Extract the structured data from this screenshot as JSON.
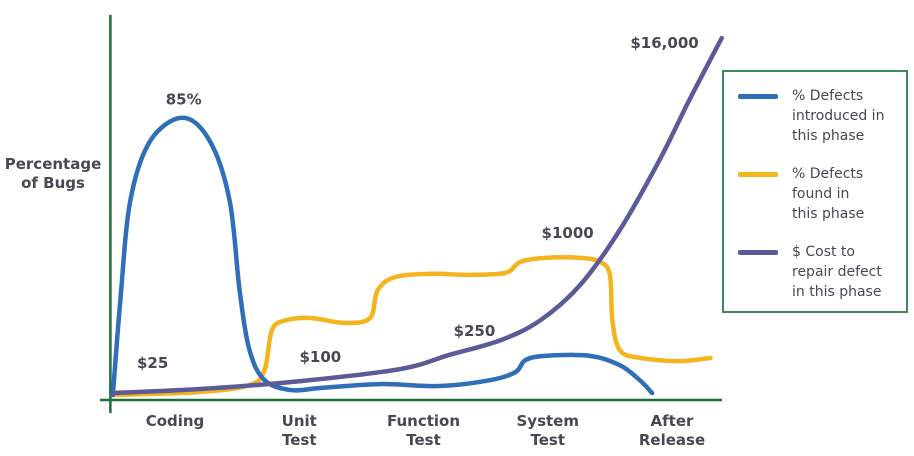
{
  "chart_data": {
    "type": "line",
    "title": "",
    "ylabel": [
      "Percentage",
      "of Bugs"
    ],
    "xlabel": "",
    "categories": [
      [
        "Coding"
      ],
      [
        "Unit",
        "Test"
      ],
      [
        "Function",
        "Test"
      ],
      [
        "System",
        "Test"
      ],
      [
        "After",
        "Release"
      ]
    ],
    "xlim": [
      -0.52,
      4.4
    ],
    "ylim": [
      0,
      116
    ],
    "grid": false,
    "legend_position": "right",
    "series": [
      {
        "name": "% Defects introduced in this phase",
        "color": "#2f6fba",
        "points": [
          [
            -0.5,
            1.5
          ],
          [
            -0.44,
            30
          ],
          [
            -0.36,
            60
          ],
          [
            -0.2,
            78
          ],
          [
            0.06,
            85
          ],
          [
            0.28,
            78
          ],
          [
            0.44,
            60
          ],
          [
            0.52,
            33
          ],
          [
            0.6,
            15
          ],
          [
            0.72,
            6
          ],
          [
            0.93,
            3
          ],
          [
            1.17,
            3.6
          ],
          [
            1.65,
            4.8
          ],
          [
            2.13,
            4.2
          ],
          [
            2.54,
            6
          ],
          [
            2.74,
            8.4
          ],
          [
            2.82,
            12
          ],
          [
            2.98,
            13.3
          ],
          [
            3.34,
            13.3
          ],
          [
            3.58,
            10.5
          ],
          [
            3.74,
            6
          ],
          [
            3.84,
            2.1
          ]
        ]
      },
      {
        "name": "% Defects found in this phase",
        "color": "#f4b41e",
        "points": [
          [
            -0.5,
            1.5
          ],
          [
            0.2,
            2.4
          ],
          [
            0.6,
            4.5
          ],
          [
            0.72,
            9
          ],
          [
            0.78,
            21
          ],
          [
            0.89,
            24
          ],
          [
            1.09,
            24.7
          ],
          [
            1.37,
            23.2
          ],
          [
            1.57,
            24.7
          ],
          [
            1.63,
            33
          ],
          [
            1.77,
            37
          ],
          [
            2.05,
            38
          ],
          [
            2.37,
            37.7
          ],
          [
            2.66,
            38.3
          ],
          [
            2.78,
            41.6
          ],
          [
            2.98,
            42.8
          ],
          [
            3.26,
            42.8
          ],
          [
            3.42,
            41.6
          ],
          [
            3.5,
            37.7
          ],
          [
            3.52,
            24
          ],
          [
            3.58,
            15
          ],
          [
            3.74,
            12.7
          ],
          [
            4.06,
            11.7
          ],
          [
            4.31,
            12.7
          ]
        ]
      },
      {
        "name": "$ Cost to repair defect in this phase",
        "color": "#5c5a98",
        "points": [
          [
            -0.5,
            2.1
          ],
          [
            0.2,
            3.3
          ],
          [
            1.01,
            5.7
          ],
          [
            1.81,
            9.3
          ],
          [
            2.21,
            13.6
          ],
          [
            2.62,
            18
          ],
          [
            2.94,
            24
          ],
          [
            3.26,
            34.6
          ],
          [
            3.58,
            51.2
          ],
          [
            3.9,
            72.3
          ],
          [
            4.14,
            90.4
          ],
          [
            4.4,
            109
          ]
        ]
      }
    ],
    "annotations": [
      {
        "text": "85%",
        "x": 0.07,
        "y": 89
      },
      {
        "text": "$25",
        "x": -0.18,
        "y": 9.6
      },
      {
        "text": "$100",
        "x": 1.17,
        "y": 11.4
      },
      {
        "text": "$250",
        "x": 2.41,
        "y": 19.3
      },
      {
        "text": "$1000",
        "x": 3.16,
        "y": 48.8
      },
      {
        "text": "$16,000",
        "x": 3.94,
        "y": 106
      }
    ],
    "axis_color": "#1e6e3a"
  },
  "legend": {
    "items": [
      {
        "lines": [
          "% Defects",
          "introduced in",
          "this phase"
        ],
        "color": "#2f6fba"
      },
      {
        "lines": [
          "% Defects",
          "found in",
          "this phase"
        ],
        "color": "#f4b41e"
      },
      {
        "lines": [
          "$ Cost to",
          "repair defect",
          "in this phase"
        ],
        "color": "#5c5a98"
      }
    ]
  }
}
